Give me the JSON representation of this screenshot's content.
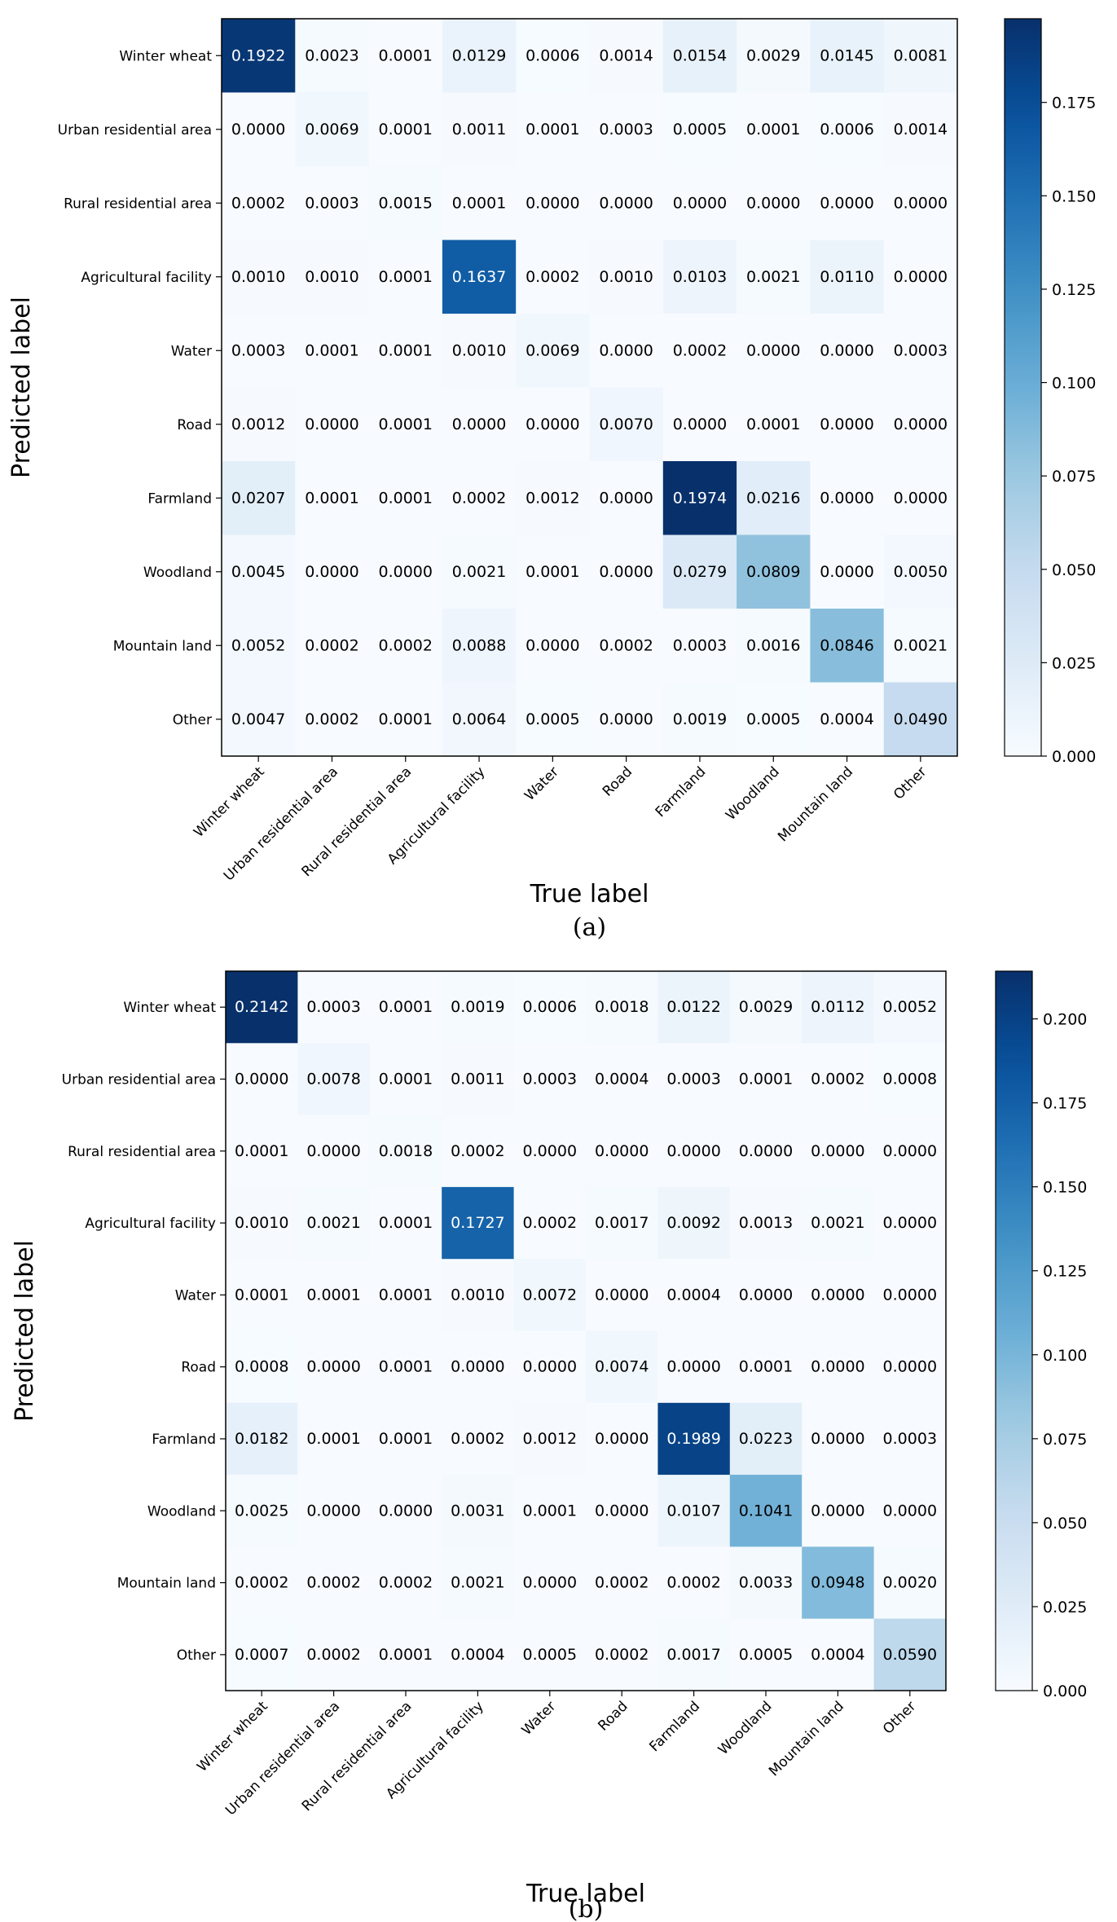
{
  "chart_data": [
    {
      "type": "heatmap",
      "caption": "(a)",
      "xlabel": "True label",
      "ylabel": "Predicted label",
      "categories": [
        "Winter wheat",
        "Urban residential area",
        "Rural residential area",
        "Agricultural facility",
        "Water",
        "Road",
        "Farmland",
        "Woodland",
        "Mountain land",
        "Other"
      ],
      "values": [
        [
          0.1922,
          0.0023,
          0.0001,
          0.0129,
          0.0006,
          0.0014,
          0.0154,
          0.0029,
          0.0145,
          0.0081
        ],
        [
          0.0,
          0.0069,
          0.0001,
          0.0011,
          0.0001,
          0.0003,
          0.0005,
          0.0001,
          0.0006,
          0.0014
        ],
        [
          0.0002,
          0.0003,
          0.0015,
          0.0001,
          0.0,
          0.0,
          0.0,
          0.0,
          0.0,
          0.0
        ],
        [
          0.001,
          0.001,
          0.0001,
          0.1637,
          0.0002,
          0.001,
          0.0103,
          0.0021,
          0.011,
          0.0
        ],
        [
          0.0003,
          0.0001,
          0.0001,
          0.001,
          0.0069,
          0.0,
          0.0002,
          0.0,
          0.0,
          0.0003
        ],
        [
          0.0012,
          0.0,
          0.0001,
          0.0,
          0.0,
          0.007,
          0.0,
          0.0001,
          0.0,
          0.0
        ],
        [
          0.0207,
          0.0001,
          0.0001,
          0.0002,
          0.0012,
          0.0,
          0.1974,
          0.0216,
          0.0,
          0.0
        ],
        [
          0.0045,
          0.0,
          0.0,
          0.0021,
          0.0001,
          0.0,
          0.0279,
          0.0809,
          0.0,
          0.005
        ],
        [
          0.0052,
          0.0002,
          0.0002,
          0.0088,
          0.0,
          0.0002,
          0.0003,
          0.0016,
          0.0846,
          0.0021
        ],
        [
          0.0047,
          0.0002,
          0.0001,
          0.0064,
          0.0005,
          0.0,
          0.0019,
          0.0005,
          0.0004,
          0.049
        ]
      ],
      "colorbar": {
        "min": 0,
        "max": 0.1974,
        "ticks": [
          "0.000",
          "0.025",
          "0.050",
          "0.075",
          "0.100",
          "0.125",
          "0.150",
          "0.175"
        ]
      },
      "colormap": "Blues"
    },
    {
      "type": "heatmap",
      "caption": "(b)",
      "xlabel": "True label",
      "ylabel": "Predicted label",
      "categories": [
        "Winter wheat",
        "Urban residential area",
        "Rural residential area",
        "Agricultural facility",
        "Water",
        "Road",
        "Farmland",
        "Woodland",
        "Mountain land",
        "Other"
      ],
      "values": [
        [
          0.2142,
          0.0003,
          0.0001,
          0.0019,
          0.0006,
          0.0018,
          0.0122,
          0.0029,
          0.0112,
          0.0052
        ],
        [
          0.0,
          0.0078,
          0.0001,
          0.0011,
          0.0003,
          0.0004,
          0.0003,
          0.0001,
          0.0002,
          0.0008
        ],
        [
          0.0001,
          0.0,
          0.0018,
          0.0002,
          0.0,
          0.0,
          0.0,
          0.0,
          0.0,
          0.0
        ],
        [
          0.001,
          0.0021,
          0.0001,
          0.1727,
          0.0002,
          0.0017,
          0.0092,
          0.0013,
          0.0021,
          0.0
        ],
        [
          0.0001,
          0.0001,
          0.0001,
          0.001,
          0.0072,
          0.0,
          0.0004,
          0.0,
          0.0,
          0.0
        ],
        [
          0.0008,
          0.0,
          0.0001,
          0.0,
          0.0,
          0.0074,
          0.0,
          0.0001,
          0.0,
          0.0
        ],
        [
          0.0182,
          0.0001,
          0.0001,
          0.0002,
          0.0012,
          0.0,
          0.1989,
          0.0223,
          0.0,
          0.0003
        ],
        [
          0.0025,
          0.0,
          0.0,
          0.0031,
          0.0001,
          0.0,
          0.0107,
          0.1041,
          0.0,
          0.0
        ],
        [
          0.0002,
          0.0002,
          0.0002,
          0.0021,
          0.0,
          0.0002,
          0.0002,
          0.0033,
          0.0948,
          0.002
        ],
        [
          0.0007,
          0.0002,
          0.0001,
          0.0004,
          0.0005,
          0.0002,
          0.0017,
          0.0005,
          0.0004,
          0.059
        ]
      ],
      "colorbar": {
        "min": 0,
        "max": 0.2142,
        "ticks": [
          "0.000",
          "0.025",
          "0.050",
          "0.075",
          "0.100",
          "0.125",
          "0.150",
          "0.175",
          "0.200"
        ]
      },
      "colormap": "Blues"
    }
  ]
}
